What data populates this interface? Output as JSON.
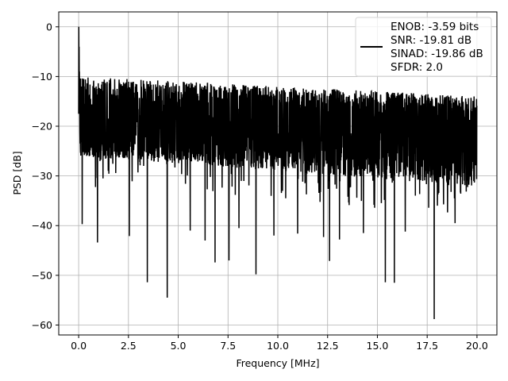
{
  "chart_data": {
    "type": "line",
    "xlabel": "Frequency [MHz]",
    "ylabel": "PSD [dB]",
    "xlim": [
      -1.0,
      21.0
    ],
    "ylim": [
      -62.0,
      3.0
    ],
    "xticks": [
      0.0,
      2.5,
      5.0,
      7.5,
      10.0,
      12.5,
      15.0,
      17.5,
      20.0
    ],
    "xtick_labels": [
      "0.0",
      "2.5",
      "5.0",
      "7.5",
      "10.0",
      "12.5",
      "15.0",
      "17.5",
      "20.0"
    ],
    "yticks": [
      0,
      -10,
      -20,
      -30,
      -40,
      -50,
      -60
    ],
    "ytick_labels": [
      "0",
      "−10",
      "−20",
      "−30",
      "−40",
      "−50",
      "−60"
    ],
    "grid": true,
    "legend_position": "top-right",
    "legend_lines": [
      "ENOB: -3.59 bits",
      "SNR: -19.81 dB",
      "SINAD: -19.86 dB",
      "SFDR: 2.0"
    ],
    "series": [
      {
        "color": "#000000",
        "x_range": [
          0.0,
          20.0
        ],
        "band": {
          "top": [
            -10,
            -14
          ],
          "bottom": [
            -26,
            -32
          ],
          "median": -20
        },
        "peak": {
          "x": 0.0,
          "y": 0.0
        },
        "dips": [
          {
            "x": 0.18,
            "y": -39.7
          },
          {
            "x": 0.95,
            "y": -43.4
          },
          {
            "x": 2.55,
            "y": -42.1
          },
          {
            "x": 3.45,
            "y": -51.4
          },
          {
            "x": 4.45,
            "y": -54.5
          },
          {
            "x": 5.6,
            "y": -41.0
          },
          {
            "x": 6.35,
            "y": -43.0
          },
          {
            "x": 6.85,
            "y": -47.4
          },
          {
            "x": 7.55,
            "y": -47.0
          },
          {
            "x": 8.05,
            "y": -40.5
          },
          {
            "x": 8.9,
            "y": -49.8
          },
          {
            "x": 9.8,
            "y": -42.0
          },
          {
            "x": 11.0,
            "y": -41.6
          },
          {
            "x": 12.3,
            "y": -42.3
          },
          {
            "x": 12.6,
            "y": -47.1
          },
          {
            "x": 13.1,
            "y": -42.8
          },
          {
            "x": 14.3,
            "y": -41.5
          },
          {
            "x": 15.4,
            "y": -51.4
          },
          {
            "x": 15.85,
            "y": -51.5
          },
          {
            "x": 16.4,
            "y": -41.2
          },
          {
            "x": 17.85,
            "y": -58.8
          },
          {
            "x": 18.9,
            "y": -39.5
          }
        ]
      }
    ]
  }
}
